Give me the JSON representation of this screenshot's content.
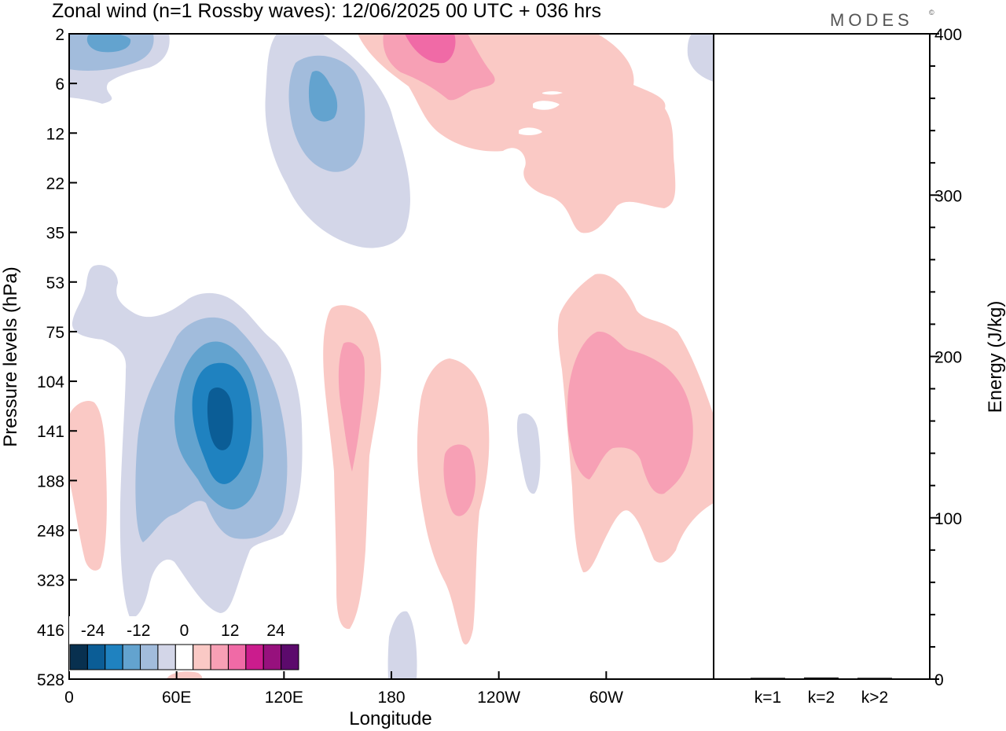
{
  "header": {
    "title": "Zonal wind (n=1 Rossby waves):  12/06/2025  00 UTC  + 036 hrs",
    "brand": "MODES",
    "brand_mark": "©"
  },
  "chart_data": [
    {
      "type": "heatmap",
      "title": "Zonal wind (n=1 Rossby waves):  12/06/2025  00 UTC  + 036 hrs",
      "xlabel": "Longitude",
      "ylabel": "Pressure levels (hPa)",
      "x_ticks": [
        "0",
        "60E",
        "120E",
        "180",
        "120W",
        "60W"
      ],
      "x_tick_degrees": [
        0,
        60,
        120,
        180,
        240,
        300
      ],
      "xlim": [
        0,
        360
      ],
      "y_ticks": [
        "2",
        "6",
        "12",
        "22",
        "35",
        "53",
        "75",
        "104",
        "141",
        "188",
        "248",
        "323",
        "416",
        "528"
      ],
      "y_scale": "model levels (non-linear pressure)",
      "colorbar": {
        "tick_labels": [
          "-24",
          "-12",
          "0",
          "12",
          "24"
        ],
        "tick_values": [
          -24,
          -12,
          0,
          12,
          24
        ],
        "colors": [
          "#08304f",
          "#0b5d96",
          "#1f82c0",
          "#63a3cf",
          "#a2bcdc",
          "#d3d6e8",
          "#ffffff",
          "#fac9c5",
          "#f7a0b5",
          "#f06aa6",
          "#cb1c8d",
          "#97117d",
          "#5c0a6c"
        ],
        "placement": "bottom-left"
      },
      "features": [
        {
          "kind": "negative",
          "lon": 18,
          "level": "2",
          "min": -12
        },
        {
          "kind": "negative",
          "lon": 140,
          "level": "6",
          "min": -12
        },
        {
          "kind": "positive",
          "lon": 200,
          "level": "2",
          "max": 10
        },
        {
          "kind": "positive",
          "lon": 250,
          "level": "6",
          "max": 4
        },
        {
          "kind": "negative",
          "lon": 85,
          "level": "141",
          "min": -24
        },
        {
          "kind": "positive",
          "lon": 158,
          "level": "141",
          "max": 8
        },
        {
          "kind": "positive",
          "lon": 218,
          "level": "188",
          "max": 8
        },
        {
          "kind": "negative",
          "lon": 260,
          "level": "188",
          "min": -4
        },
        {
          "kind": "positive",
          "lon": 300,
          "level": "141",
          "max": 8
        },
        {
          "kind": "positive",
          "lon": 8,
          "level": "188",
          "max": 4
        }
      ]
    },
    {
      "type": "bar",
      "ylabel": "Energy (J/kg)",
      "categories": [
        "k=1",
        "k=2",
        "k>2"
      ],
      "values": [
        0.3,
        0.5,
        0.3
      ],
      "ylim": [
        0,
        400
      ],
      "y_ticks": [
        "0",
        "100",
        "200",
        "300",
        "400"
      ],
      "y_tick_values": [
        0,
        100,
        200,
        300,
        400
      ],
      "y_minor_step": 20,
      "color": "#000000"
    }
  ]
}
